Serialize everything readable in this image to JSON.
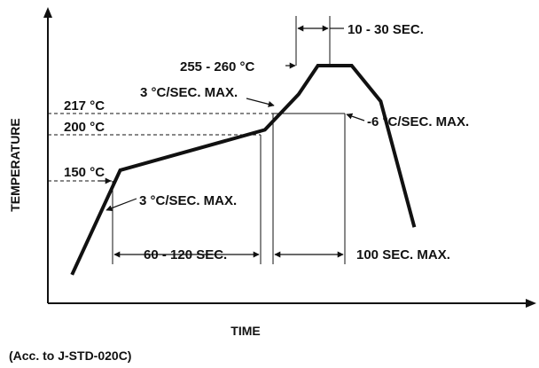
{
  "chart_data": {
    "type": "line",
    "title": "",
    "xlabel": "TIME",
    "ylabel": "TEMPERATURE",
    "note": "(Acc. to J-STD-020C)",
    "series": [
      {
        "points": [
          [
            0.05,
            0.12
          ],
          [
            0.15,
            0.56
          ],
          [
            0.45,
            0.73
          ],
          [
            0.52,
            0.88
          ],
          [
            0.56,
            1.0
          ],
          [
            0.63,
            1.0
          ],
          [
            0.69,
            0.85
          ],
          [
            0.76,
            0.32
          ]
        ]
      }
    ],
    "reference_labels": {
      "t217": "217 °C",
      "t200": "200 °C",
      "t150": "150 °C",
      "t255": "255 - 260 °C"
    },
    "annotations": {
      "ramp_up": "3 °C/SEC. MAX.",
      "ramp_up_2": "3 °C/SEC. MAX.",
      "ramp_down": "-6 °C/SEC. MAX.",
      "peak_time": "10 - 30 SEC.",
      "preheat_time": "60 - 120 SEC.",
      "liquidus_time": "100 SEC. MAX."
    },
    "colors": {
      "line": "#111111",
      "axis": "#111111",
      "guide": "#111111"
    }
  }
}
